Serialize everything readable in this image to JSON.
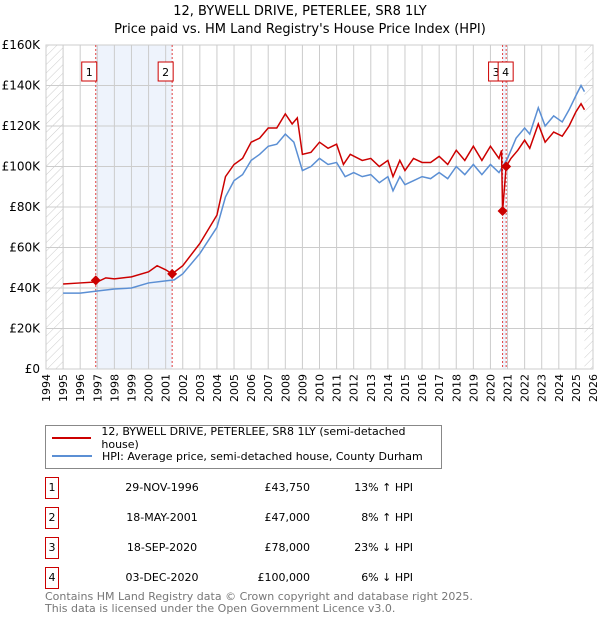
{
  "title": "12, BYWELL DRIVE, PETERLEE, SR8 1LY",
  "subtitle": "Price paid vs. HM Land Registry's House Price Index (HPI)",
  "chart_data": {
    "type": "line",
    "title": "12, BYWELL DRIVE, PETERLEE, SR8 1LY",
    "subtitle": "Price paid vs. HM Land Registry's House Price Index (HPI)",
    "xlim": [
      1994,
      2026
    ],
    "ylim": [
      0,
      160000
    ],
    "x_ticks": [
      "1994",
      "1995",
      "1996",
      "1997",
      "1998",
      "1999",
      "2000",
      "2001",
      "2002",
      "2003",
      "2004",
      "2005",
      "2006",
      "2007",
      "2008",
      "2009",
      "2010",
      "2011",
      "2012",
      "2013",
      "2014",
      "2015",
      "2016",
      "2017",
      "2018",
      "2019",
      "2020",
      "2021",
      "2022",
      "2023",
      "2024",
      "2025",
      "2026"
    ],
    "y_ticks": [
      {
        "v": 0,
        "label": "£0"
      },
      {
        "v": 20000,
        "label": "£20K"
      },
      {
        "v": 40000,
        "label": "£40K"
      },
      {
        "v": 60000,
        "label": "£60K"
      },
      {
        "v": 80000,
        "label": "£80K"
      },
      {
        "v": 100000,
        "label": "£100K"
      },
      {
        "v": 120000,
        "label": "£120K"
      },
      {
        "v": 140000,
        "label": "£140K"
      },
      {
        "v": 160000,
        "label": "£160K"
      }
    ],
    "grid": true,
    "series": [
      {
        "name": "12, BYWELL DRIVE, PETERLEE, SR8 1LY (semi-detached house)",
        "color": "#cc0000",
        "x": [
          1995,
          1996,
          1997,
          1997.5,
          1998,
          1999,
          2000,
          2000.5,
          2001,
          2001.38,
          2002,
          2003,
          2004,
          2004.5,
          2005,
          2005.5,
          2006,
          2006.5,
          2007,
          2007.5,
          2008,
          2008.4,
          2008.7,
          2009,
          2009.5,
          2010,
          2010.5,
          2011,
          2011.4,
          2011.8,
          2012.5,
          2013,
          2013.5,
          2014,
          2014.3,
          2014.7,
          2015,
          2015.5,
          2016,
          2016.5,
          2017,
          2017.5,
          2018,
          2018.5,
          2019,
          2019.5,
          2020,
          2020.5,
          2020.65,
          2020.71,
          2020.92,
          2021.2,
          2021.6,
          2022,
          2022.3,
          2022.8,
          2023.2,
          2023.7,
          2024.2,
          2024.6,
          2025,
          2025.3,
          2025.5
        ],
        "y": [
          42000,
          42500,
          43000,
          45000,
          44500,
          45500,
          48000,
          51000,
          49000,
          47000,
          51000,
          62000,
          76000,
          95000,
          101000,
          104000,
          112000,
          114000,
          119000,
          119000,
          126000,
          121000,
          124000,
          106000,
          107000,
          112000,
          109000,
          111000,
          101000,
          106000,
          103000,
          104000,
          100000,
          103000,
          95000,
          103000,
          98000,
          104000,
          102000,
          102000,
          105000,
          101000,
          108000,
          103000,
          110000,
          103000,
          110000,
          104000,
          108000,
          78000,
          100000,
          104000,
          108000,
          113000,
          109000,
          121000,
          112000,
          117000,
          115000,
          120000,
          127000,
          131000,
          128000
        ]
      },
      {
        "name": "HPI: Average price, semi-detached house, County Durham",
        "color": "#5b8fd4",
        "x": [
          1995,
          1996,
          1997,
          1998,
          1999,
          2000,
          2001,
          2001.5,
          2002,
          2003,
          2004,
          2004.5,
          2005,
          2005.5,
          2006,
          2006.5,
          2007,
          2007.5,
          2008,
          2008.5,
          2009,
          2009.5,
          2010,
          2010.5,
          2011,
          2011.5,
          2012,
          2012.5,
          2013,
          2013.5,
          2014,
          2014.3,
          2014.7,
          2015,
          2015.5,
          2016,
          2016.5,
          2017,
          2017.5,
          2018,
          2018.5,
          2019,
          2019.5,
          2020,
          2020.5,
          2021,
          2021.5,
          2022,
          2022.3,
          2022.8,
          2023.2,
          2023.7,
          2024.2,
          2024.6,
          2025,
          2025.3,
          2025.5
        ],
        "y": [
          37500,
          37500,
          38500,
          39500,
          40000,
          42500,
          43500,
          44000,
          47000,
          57000,
          70000,
          85000,
          93000,
          96000,
          103000,
          106000,
          110000,
          111000,
          116000,
          112000,
          98000,
          100000,
          104000,
          101000,
          102000,
          95000,
          97000,
          95000,
          96000,
          92000,
          95000,
          88000,
          95000,
          91000,
          93000,
          95000,
          94000,
          97000,
          94000,
          100000,
          96000,
          101000,
          96000,
          101000,
          97000,
          104000,
          114000,
          119000,
          116000,
          129000,
          120000,
          125000,
          122000,
          128000,
          135000,
          140000,
          137000
        ]
      }
    ],
    "sales": [
      {
        "n": "1",
        "x": 1996.91,
        "y": 43750
      },
      {
        "n": "2",
        "x": 2001.38,
        "y": 47000
      },
      {
        "n": "3",
        "x": 2020.71,
        "y": 78000
      },
      {
        "n": "4",
        "x": 2020.92,
        "y": 100000
      }
    ],
    "legend_position": "below"
  },
  "legend": {
    "red": "12, BYWELL DRIVE, PETERLEE, SR8 1LY (semi-detached house)",
    "blue": "HPI: Average price, semi-detached house, County Durham"
  },
  "table": [
    {
      "n": "1",
      "date": "29-NOV-1996",
      "price": "£43,750",
      "hpi": "13% ↑ HPI"
    },
    {
      "n": "2",
      "date": "18-MAY-2001",
      "price": "£47,000",
      "hpi": "8% ↑ HPI"
    },
    {
      "n": "3",
      "date": "18-SEP-2020",
      "price": "£78,000",
      "hpi": "23% ↓ HPI"
    },
    {
      "n": "4",
      "date": "03-DEC-2020",
      "price": "£100,000",
      "hpi": "6% ↓ HPI"
    }
  ],
  "footer": [
    "Contains HM Land Registry data © Crown copyright and database right 2025.",
    "This data is licensed under the Open Government Licence v3.0."
  ]
}
